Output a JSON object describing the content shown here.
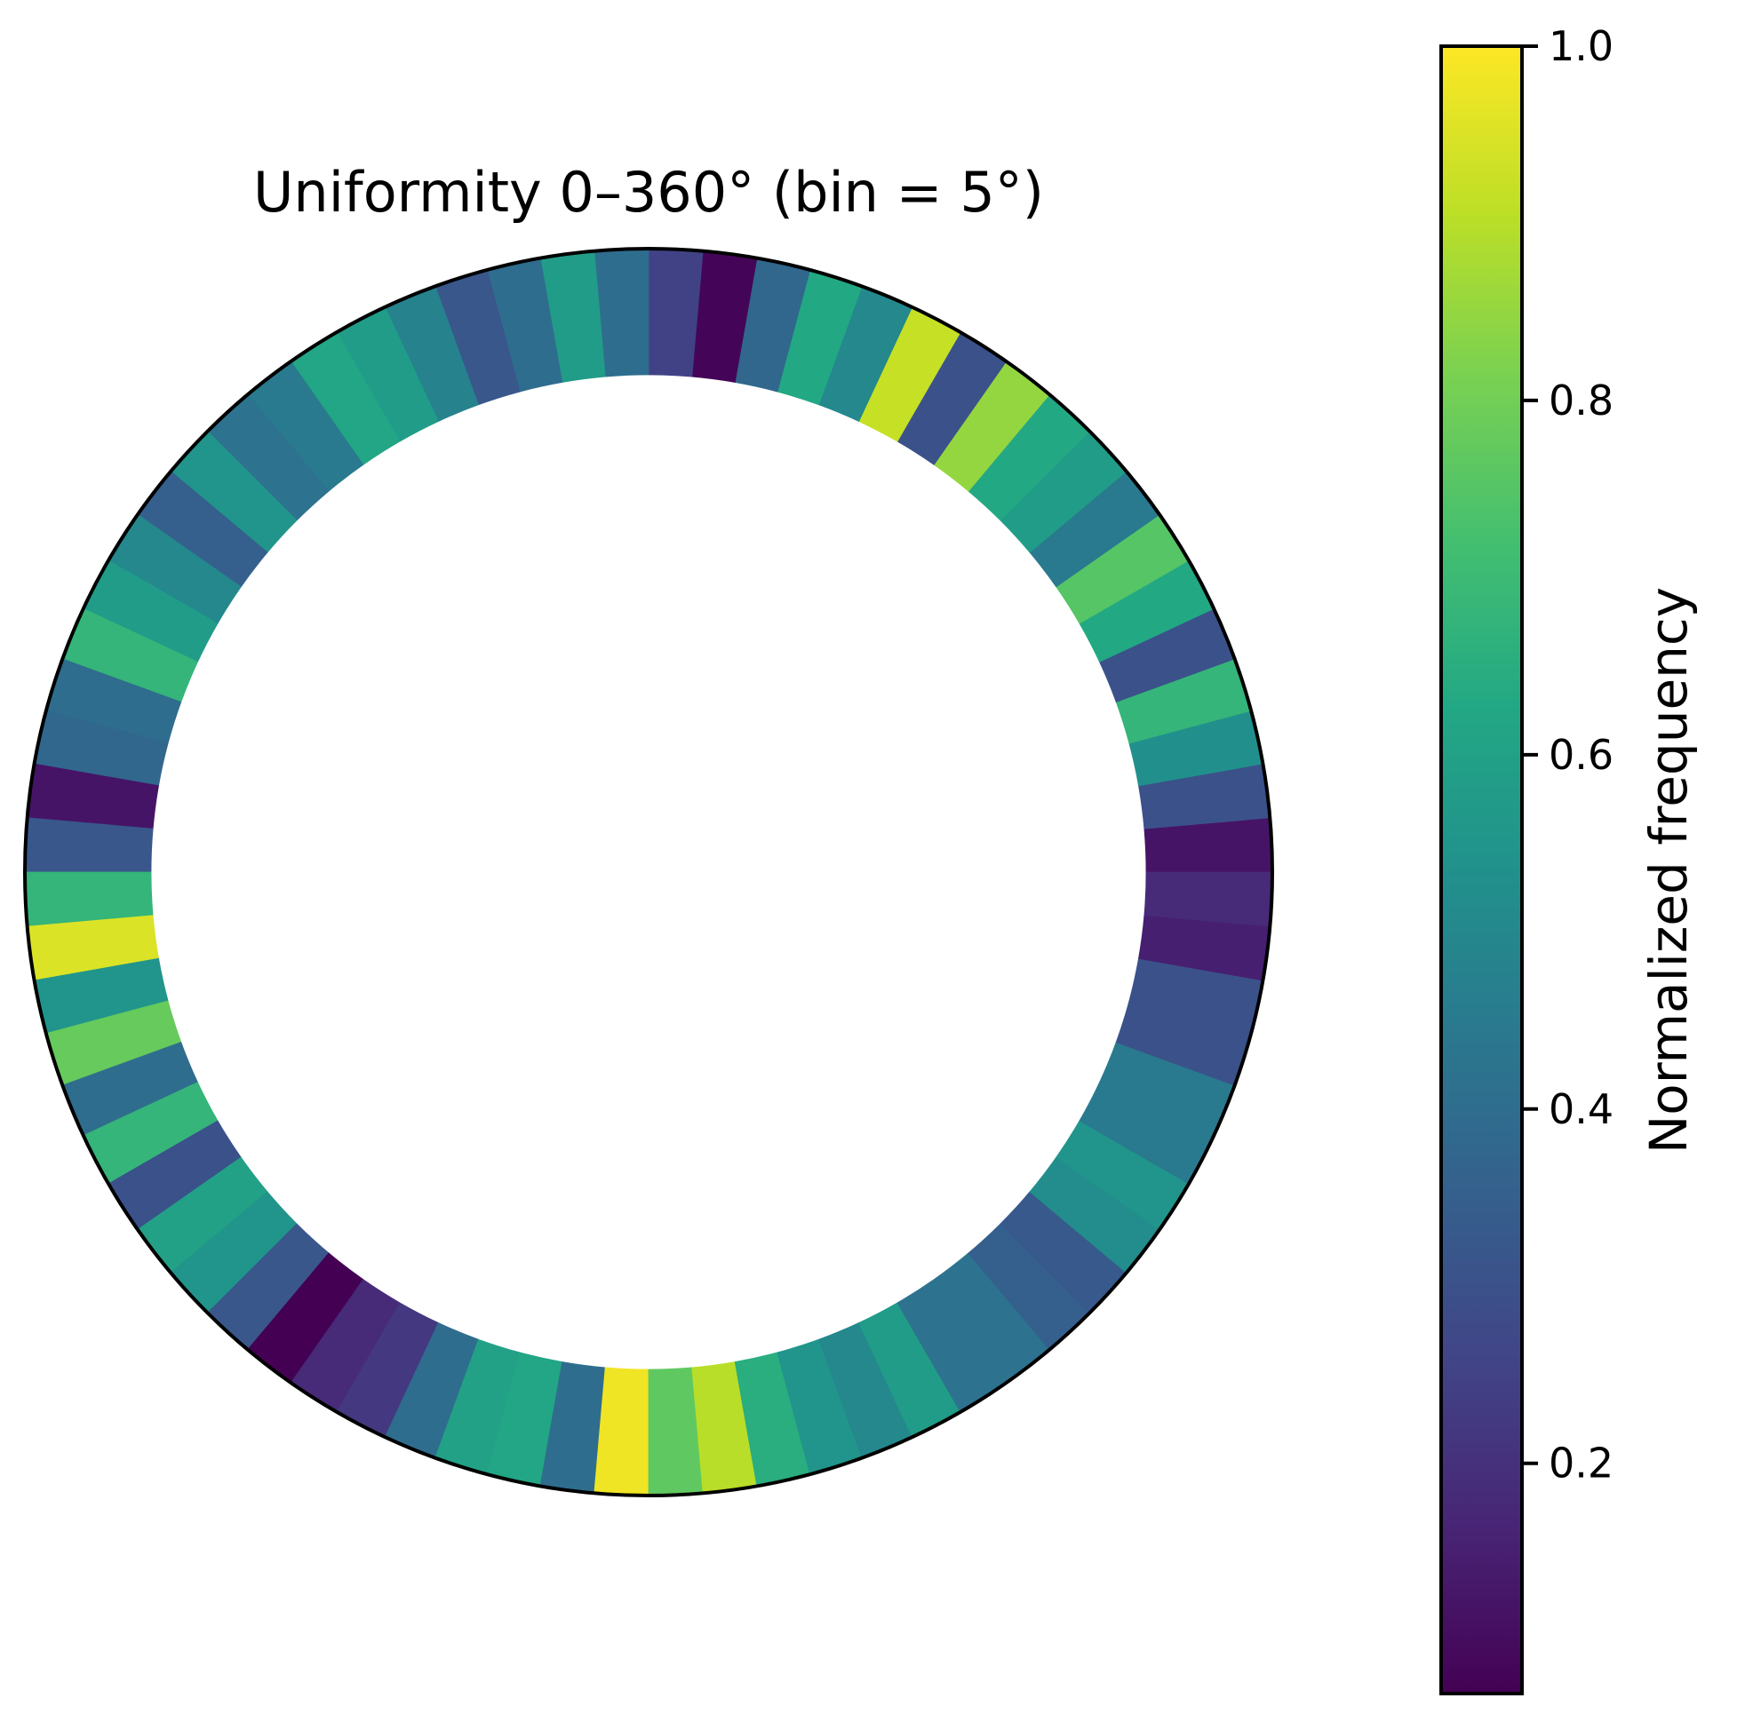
{
  "chart_data": {
    "type": "heatmap",
    "subtype": "polar-ring",
    "title": "Uniformity 0–360° (bin = 5°)",
    "bin_size_deg": 5,
    "angle_range_deg": [
      0,
      360
    ],
    "direction": "counterclockwise",
    "zero_location": "east",
    "bins_start_deg": [
      0,
      5,
      10,
      15,
      20,
      25,
      30,
      35,
      40,
      45,
      50,
      55,
      60,
      65,
      70,
      75,
      80,
      85,
      90,
      95,
      100,
      105,
      110,
      115,
      120,
      125,
      130,
      135,
      140,
      145,
      150,
      155,
      160,
      165,
      170,
      175,
      180,
      185,
      190,
      195,
      200,
      205,
      210,
      215,
      220,
      225,
      230,
      235,
      240,
      245,
      250,
      255,
      260,
      265,
      270,
      275,
      280,
      285,
      290,
      295,
      300,
      305,
      310,
      315,
      320,
      325,
      330,
      335,
      340,
      345,
      350,
      355
    ],
    "values": [
      0.12,
      0.3,
      0.53,
      0.68,
      0.3,
      0.63,
      0.75,
      0.45,
      0.58,
      0.63,
      0.85,
      0.3,
      0.92,
      0.5,
      0.63,
      0.38,
      0.08,
      0.25,
      0.4,
      0.58,
      0.4,
      0.32,
      0.48,
      0.58,
      0.62,
      0.45,
      0.42,
      0.55,
      0.35,
      0.5,
      0.58,
      0.68,
      0.4,
      0.38,
      0.12,
      0.32,
      0.68,
      0.95,
      0.55,
      0.78,
      0.4,
      0.68,
      0.3,
      0.6,
      0.55,
      0.32,
      0.07,
      0.18,
      0.22,
      0.4,
      0.6,
      0.62,
      0.4,
      0.98,
      0.77,
      0.9,
      0.65,
      0.55,
      0.5,
      0.58,
      0.42,
      0.42,
      0.35,
      0.33,
      0.52,
      0.55,
      0.45,
      0.45,
      0.3,
      0.3,
      0.15,
      0.18
    ],
    "colorbar": {
      "label": "Normalized frequency",
      "colormap": "viridis",
      "range": [
        0.07,
        1.0
      ],
      "ticks": [
        0.2,
        0.4,
        0.6,
        0.8,
        1.0
      ],
      "tick_labels": [
        "0.2",
        "0.4",
        "0.6",
        "0.8",
        "1.0"
      ],
      "position": "right"
    },
    "grid": false
  }
}
